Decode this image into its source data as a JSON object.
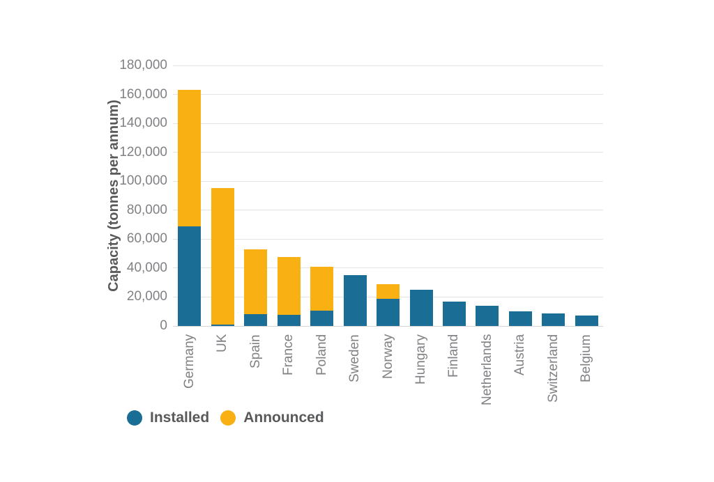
{
  "chart_data": {
    "type": "bar",
    "stacked": true,
    "title": "",
    "xlabel": "",
    "ylabel": "Capacity (tonnes per annum)",
    "ylim": [
      0,
      180000
    ],
    "ytick_step": 20000,
    "ytick_labels_top_to_bottom": [
      "180,000",
      "160,000",
      "140,000",
      "120,000",
      "100,000",
      "80,000",
      "60,000",
      "40,000",
      "20,000",
      "0"
    ],
    "grid": "horizontal",
    "legend_position": "bottom-left",
    "categories": [
      "Germany",
      "UK",
      "Spain",
      "France",
      "Poland",
      "Sweden",
      "Norway",
      "Hungary",
      "Finland",
      "Netherlands",
      "Austria",
      "Switzerland",
      "Belgium"
    ],
    "series": [
      {
        "name": "Installed",
        "color": "#1a6e96",
        "values": [
          69000,
          1000,
          8000,
          7500,
          10500,
          35000,
          19000,
          25000,
          17000,
          14000,
          10000,
          8500,
          7000
        ]
      },
      {
        "name": "Announced",
        "color": "#f9b013",
        "values": [
          94000,
          94500,
          45000,
          40000,
          30500,
          0,
          10000,
          0,
          0,
          0,
          0,
          0,
          0
        ]
      }
    ],
    "totals": [
      163000,
      95500,
      53000,
      47500,
      41000,
      35000,
      29000,
      25000,
      17000,
      14000,
      10000,
      8500,
      7000
    ]
  },
  "colors": {
    "grid": "#e3e3e3",
    "baseline": "#d5d5d5",
    "tick_text": "#7f8184",
    "axis_title_text": "#58595b",
    "legend_text": "#58595b",
    "background": "#ffffff"
  }
}
